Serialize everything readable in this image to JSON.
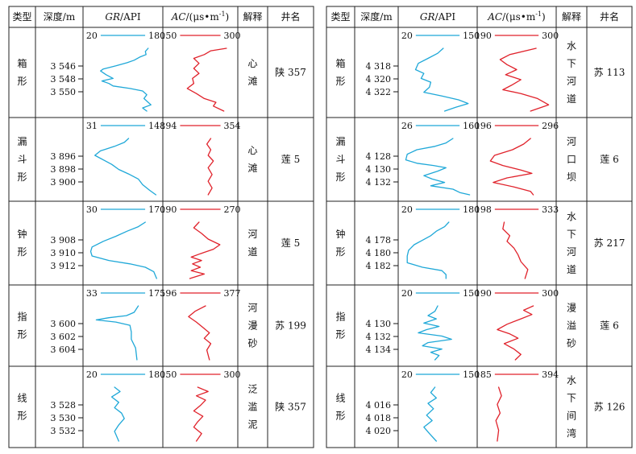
{
  "headers": {
    "type": "类型",
    "depth": "深度/m",
    "gr": "GR/API",
    "gr_italic": "GR",
    "gr_unit": "/API",
    "ac": "AC/(μs•m⁻¹)",
    "ac_italic": "AC",
    "ac_unit": "/(μs•m",
    "ac_sup": "-1",
    "ac_close": ")",
    "interp": "解释",
    "well": "井名"
  },
  "colors": {
    "gr": "#1fa8d8",
    "ac": "#e0222b",
    "grid": "#222222"
  },
  "panels": [
    {
      "rows": [
        {
          "type": "箱形",
          "depths": [
            "3 546",
            "3 548",
            "3 550"
          ],
          "gr_scale": [
            "20",
            "180"
          ],
          "ac_scale": [
            "150",
            "300"
          ],
          "interpretation": "心滩",
          "well": "陕 357"
        },
        {
          "type": "漏斗形",
          "depths": [
            "3 896",
            "3 898",
            "3 900"
          ],
          "gr_scale": [
            "31",
            "148"
          ],
          "ac_scale": [
            "194",
            "354"
          ],
          "interpretation": "心滩",
          "well": "莲 5"
        },
        {
          "type": "钟形",
          "depths": [
            "3 908",
            "3 910",
            "3 912"
          ],
          "gr_scale": [
            "30",
            "170"
          ],
          "ac_scale": [
            "190",
            "270"
          ],
          "interpretation": "河道",
          "well": "莲 5"
        },
        {
          "type": "指形",
          "depths": [
            "3 600",
            "3 602",
            "3 604"
          ],
          "gr_scale": [
            "33",
            "175"
          ],
          "ac_scale": [
            "196",
            "377"
          ],
          "interpretation": "河漫砂",
          "well": "苏 199"
        },
        {
          "type": "线形",
          "depths": [
            "3 528",
            "3 530",
            "3 532"
          ],
          "gr_scale": [
            "20",
            "180"
          ],
          "ac_scale": [
            "150",
            "300"
          ],
          "interpretation": "泛滥泥",
          "well": "陕 357"
        }
      ]
    },
    {
      "rows": [
        {
          "type": "箱形",
          "depths": [
            "4 318",
            "4 320",
            "4 322"
          ],
          "gr_scale": [
            "20",
            "150"
          ],
          "ac_scale": [
            "190",
            "300"
          ],
          "interpretation": "水下河道",
          "well": "苏 113"
        },
        {
          "type": "漏斗形",
          "depths": [
            "4 128",
            "4 130",
            "4 132"
          ],
          "gr_scale": [
            "26",
            "160"
          ],
          "ac_scale": [
            "196",
            "296"
          ],
          "interpretation": "河口坝",
          "well": "莲 6"
        },
        {
          "type": "钟形",
          "depths": [
            "4 178",
            "4 180",
            "4 182"
          ],
          "gr_scale": [
            "20",
            "180"
          ],
          "ac_scale": [
            "198",
            "333"
          ],
          "interpretation": "水下河道",
          "well": "苏 217"
        },
        {
          "type": "指形",
          "depths": [
            "4 130",
            "4 132",
            "4 134"
          ],
          "gr_scale": [
            "20",
            "150"
          ],
          "ac_scale": [
            "190",
            "300"
          ],
          "interpretation": "漫溢砂",
          "well": "莲 6"
        },
        {
          "type": "线形",
          "depths": [
            "4 016",
            "4 018",
            "4 020"
          ],
          "gr_scale": [
            "20",
            "150"
          ],
          "ac_scale": [
            "185",
            "394"
          ],
          "interpretation": "水下间湾",
          "well": "苏 126"
        }
      ]
    }
  ]
}
